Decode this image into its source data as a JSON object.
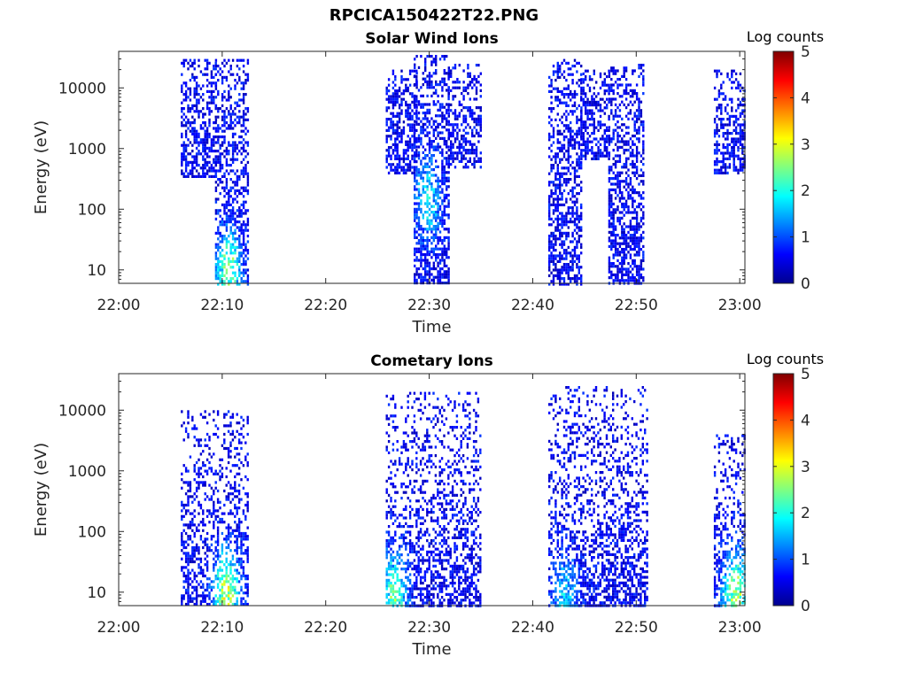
{
  "figure": {
    "title": "RPCICA150422T22.PNG"
  },
  "colormap": {
    "name": "jet",
    "stops": [
      "#00008f",
      "#0000ff",
      "#0080ff",
      "#00ffff",
      "#80ff80",
      "#ffff00",
      "#ff8000",
      "#ff0000",
      "#800000"
    ]
  },
  "chart_data": [
    {
      "type": "heatmap",
      "title": "Solar Wind Ions",
      "xlabel": "Time",
      "ylabel": "Energy (eV)",
      "x_ticks": [
        "22:00",
        "22:10",
        "22:20",
        "22:30",
        "22:40",
        "22:50",
        "23:00"
      ],
      "x_tick_minutes": [
        0,
        10,
        20,
        30,
        40,
        50,
        60
      ],
      "xlim_minutes": [
        0,
        60.5
      ],
      "y_scale": "log",
      "ylim": [
        6,
        40000
      ],
      "y_ticks": [
        10,
        100,
        1000,
        10000
      ],
      "y_tick_labels": [
        "10",
        "100",
        "1000",
        "10000"
      ],
      "colorbar": {
        "label": "Log counts",
        "range": [
          0,
          5
        ],
        "ticks": [
          "0",
          "1",
          "2",
          "3",
          "4",
          "5"
        ]
      },
      "bursts": [
        {
          "t_start": 6.0,
          "t_end": 9.3,
          "e_min": 350,
          "e_max": 30000,
          "peak": 1.0
        },
        {
          "t_start": 9.3,
          "t_end": 12.5,
          "e_min": 6,
          "e_max": 30000,
          "peak": 2.6,
          "peak_t": 10.5,
          "peak_e": 10
        },
        {
          "t_start": 25.8,
          "t_end": 28.8,
          "e_min": 400,
          "e_max": 20000,
          "peak": 1.0
        },
        {
          "t_start": 28.5,
          "t_end": 31.8,
          "e_min": 6,
          "e_max": 35000,
          "peak": 1.9,
          "peak_t": 29.8,
          "peak_e": 150
        },
        {
          "t_start": 31.8,
          "t_end": 35.0,
          "e_min": 500,
          "e_max": 25000,
          "peak": 1.0
        },
        {
          "t_start": 41.5,
          "t_end": 44.6,
          "e_min": 6,
          "e_max": 30000,
          "peak": 1.0
        },
        {
          "t_start": 44.6,
          "t_end": 47.3,
          "e_min": 700,
          "e_max": 20000,
          "peak": 1.0
        },
        {
          "t_start": 47.3,
          "t_end": 50.7,
          "e_min": 6,
          "e_max": 25000,
          "peak": 1.0
        },
        {
          "t_start": 57.5,
          "t_end": 60.5,
          "e_min": 400,
          "e_max": 20000,
          "peak": 1.0
        }
      ]
    },
    {
      "type": "heatmap",
      "title": "Cometary Ions",
      "xlabel": "Time",
      "ylabel": "Energy (eV)",
      "x_ticks": [
        "22:00",
        "22:10",
        "22:20",
        "22:30",
        "22:40",
        "22:50",
        "23:00"
      ],
      "x_tick_minutes": [
        0,
        10,
        20,
        30,
        40,
        50,
        60
      ],
      "xlim_minutes": [
        0,
        60.5
      ],
      "y_scale": "log",
      "ylim": [
        6,
        40000
      ],
      "y_ticks": [
        10,
        100,
        1000,
        10000
      ],
      "y_tick_labels": [
        "10",
        "100",
        "1000",
        "10000"
      ],
      "colorbar": {
        "label": "Log counts",
        "range": [
          0,
          5
        ],
        "ticks": [
          "0",
          "1",
          "2",
          "3",
          "4",
          "5"
        ]
      },
      "bursts": [
        {
          "t_start": 6.0,
          "t_end": 12.5,
          "e_min": 6,
          "e_max": 10000,
          "peak": 3.0,
          "peak_t": 10.3,
          "peak_e": 10
        },
        {
          "t_start": 25.8,
          "t_end": 35.0,
          "e_min": 6,
          "e_max": 20000,
          "peak": 2.5,
          "peak_t": 26.5,
          "peak_e": 10
        },
        {
          "t_start": 41.5,
          "t_end": 51.0,
          "e_min": 6,
          "e_max": 25000,
          "peak": 1.8,
          "peak_t": 43.0,
          "peak_e": 8
        },
        {
          "t_start": 57.5,
          "t_end": 60.5,
          "e_min": 6,
          "e_max": 4000,
          "peak": 2.8,
          "peak_t": 59.5,
          "peak_e": 10
        }
      ]
    }
  ]
}
